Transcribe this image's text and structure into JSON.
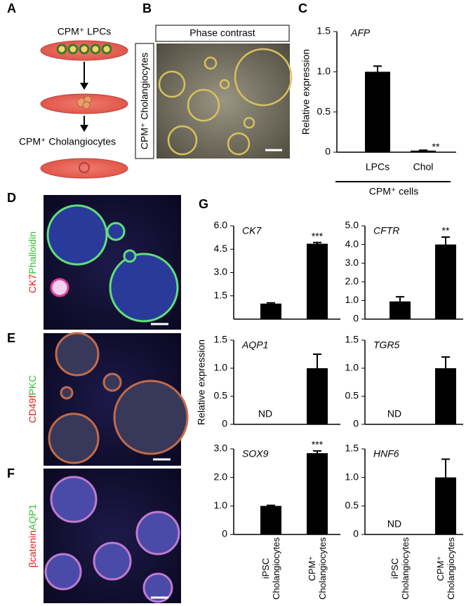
{
  "panels": {
    "letters": [
      "A",
      "B",
      "C",
      "D",
      "E",
      "F",
      "G"
    ],
    "a": {
      "top": "CPM⁺ LPCs",
      "bottom": "CPM⁺ Cholangiocytes"
    },
    "b": {
      "header": "Phase contrast",
      "side": "CPM⁺ Cholangiocytes"
    },
    "stains": [
      [
        "CK7",
        "Phalloidin"
      ],
      [
        "CD49f",
        "PKC"
      ],
      [
        "βcatenin",
        "AQP1"
      ]
    ]
  },
  "chart_data": [
    {
      "type": "bar",
      "title": "AFP",
      "ylabel": "Relative expression",
      "xlabel": "CPM⁺ cells",
      "categories": [
        "LPCs",
        "Chol"
      ],
      "values": [
        1.0,
        0.02
      ],
      "errors": [
        0.07,
        0.005
      ],
      "significance": [
        null,
        "**"
      ],
      "ylim": [
        0,
        1.5
      ],
      "yticks": [
        0,
        0.5,
        {
          "value": 1,
          "label": "1.0"
        },
        1.5
      ],
      "color": "#000000"
    },
    {
      "type": "bar",
      "title": "CK7",
      "values": [
        1.0,
        4.85
      ],
      "errors": [
        0.05,
        0.08
      ],
      "significance": [
        null,
        "***"
      ],
      "ylim": [
        0,
        6
      ],
      "yticks": [
        1.5,
        {
          "value": 3,
          "label": "3.0"
        },
        4.5,
        {
          "value": 6,
          "label": "6.0"
        }
      ],
      "color": "#000000"
    },
    {
      "type": "bar",
      "title": "CFTR",
      "values": [
        0.95,
        4.0
      ],
      "errors": [
        0.25,
        0.4
      ],
      "significance": [
        null,
        "**"
      ],
      "ylim": [
        0,
        5
      ],
      "yticks": [
        0,
        {
          "value": 1,
          "label": "1.0"
        },
        {
          "value": 2,
          "label": "2.0"
        },
        {
          "value": 3,
          "label": "3.0"
        },
        {
          "value": 4,
          "label": "4.0"
        },
        {
          "value": 5,
          "label": "5.0"
        }
      ],
      "color": "#000000"
    },
    {
      "type": "bar",
      "title": "AQP1",
      "ylabel": "Relative expression",
      "values": [
        null,
        1.0
      ],
      "errors": [
        null,
        0.25
      ],
      "value_labels": [
        "ND",
        null
      ],
      "ylim": [
        0,
        1.5
      ],
      "yticks": [
        0,
        0.5,
        {
          "value": 1,
          "label": "1.0"
        },
        1.5
      ],
      "color": "#000000"
    },
    {
      "type": "bar",
      "title": "TGR5",
      "values": [
        null,
        1.0
      ],
      "errors": [
        null,
        0.2
      ],
      "value_labels": [
        "ND",
        null
      ],
      "ylim": [
        0,
        1.5
      ],
      "yticks": [
        0,
        0.5,
        {
          "value": 1,
          "label": "1.0"
        },
        1.5
      ],
      "color": "#000000"
    },
    {
      "type": "bar",
      "title": "SOX9",
      "categories": [
        "iPSC\nCholangiocytes",
        "CPM⁺\nCholangiocytes"
      ],
      "values": [
        1.0,
        2.85
      ],
      "errors": [
        0.02,
        0.08
      ],
      "significance": [
        null,
        "***"
      ],
      "ylim": [
        0,
        3
      ],
      "yticks": [
        0,
        {
          "value": 1,
          "label": "1.0"
        },
        {
          "value": 2,
          "label": "2.0"
        },
        {
          "value": 3,
          "label": "3.0"
        }
      ],
      "color": "#000000"
    },
    {
      "type": "bar",
      "title": "HNF6",
      "categories": [
        "iPSC\nCholangiocytes",
        "CPM⁺\nCholangiocytes"
      ],
      "values": [
        null,
        1.0
      ],
      "errors": [
        null,
        0.32
      ],
      "value_labels": [
        "ND",
        null
      ],
      "ylim": [
        0,
        1.5
      ],
      "yticks": [
        0,
        0.5,
        {
          "value": 1,
          "label": "1.0"
        },
        1.5
      ],
      "color": "#000000"
    }
  ]
}
